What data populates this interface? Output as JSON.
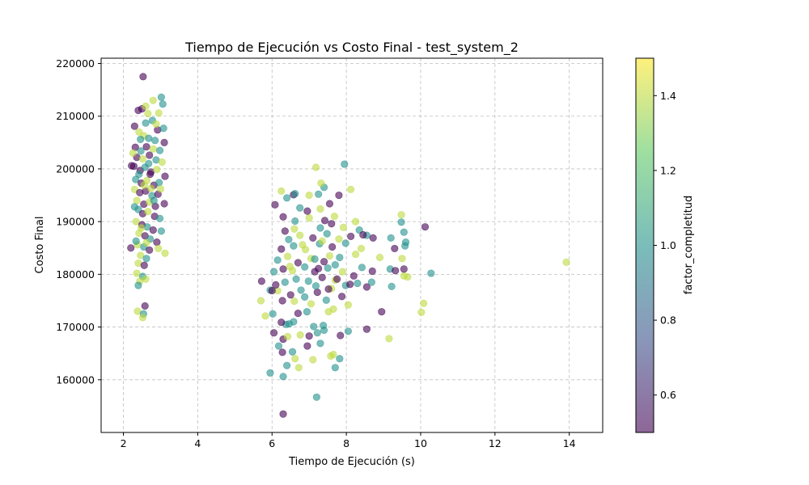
{
  "chart_data": {
    "type": "scatter",
    "title": "Tiempo de Ejecución vs Costo Final - test_system_2",
    "xlabel": "Tiempo de Ejecución (s)",
    "ylabel": "Costo Final",
    "xlim": [
      1.4,
      14.9
    ],
    "ylim": [
      150000,
      221000
    ],
    "xticks": [
      2,
      4,
      6,
      8,
      10,
      12,
      14
    ],
    "yticks": [
      160000,
      170000,
      180000,
      190000,
      200000,
      210000,
      220000
    ],
    "grid": true,
    "grid_style": "dashed",
    "alpha": 0.6,
    "colormap": "viridis",
    "colorbar": {
      "label": "factor_completitud",
      "range": [
        0.5,
        1.5
      ],
      "ticks": [
        0.6,
        0.8,
        1.0,
        1.2,
        1.4
      ]
    },
    "tick_labels": {
      "x": [
        "2",
        "4",
        "6",
        "8",
        "10",
        "12",
        "14"
      ],
      "y": [
        "160000",
        "170000",
        "180000",
        "190000",
        "200000",
        "210000",
        "220000"
      ],
      "colorbar": [
        "0.6",
        "0.8",
        "1.0",
        "1.2",
        "1.4"
      ]
    },
    "points": [
      [
        2.53,
        217500,
        0.5
      ],
      [
        2.8,
        213000,
        1.4
      ],
      [
        3.02,
        213600,
        1.0
      ],
      [
        3.06,
        212300,
        1.0
      ],
      [
        2.4,
        211100,
        0.5
      ],
      [
        2.5,
        211400,
        0.5
      ],
      [
        2.95,
        210600,
        1.4
      ],
      [
        2.3,
        208100,
        0.5
      ],
      [
        2.6,
        208700,
        1.0
      ],
      [
        2.78,
        209200,
        1.0
      ],
      [
        2.92,
        207400,
        0.5
      ],
      [
        3.08,
        207700,
        1.0
      ],
      [
        2.42,
        207000,
        1.4
      ],
      [
        2.55,
        206300,
        1.4
      ],
      [
        2.68,
        205800,
        1.0
      ],
      [
        2.85,
        205400,
        1.0
      ],
      [
        3.1,
        205000,
        0.5
      ],
      [
        2.32,
        204100,
        0.5
      ],
      [
        2.47,
        203400,
        1.0
      ],
      [
        2.62,
        204200,
        0.5
      ],
      [
        2.8,
        203800,
        1.4
      ],
      [
        2.98,
        203500,
        1.0
      ],
      [
        2.36,
        202200,
        0.5
      ],
      [
        2.52,
        201900,
        1.4
      ],
      [
        2.7,
        202600,
        0.5
      ],
      [
        2.88,
        201700,
        1.0
      ],
      [
        3.04,
        201300,
        1.4
      ],
      [
        2.28,
        200500,
        0.5
      ],
      [
        2.45,
        199700,
        0.5
      ],
      [
        2.58,
        200300,
        1.0
      ],
      [
        2.74,
        199400,
        0.5
      ],
      [
        2.9,
        199900,
        1.4
      ],
      [
        3.12,
        198600,
        0.5
      ],
      [
        2.33,
        198000,
        1.0
      ],
      [
        2.48,
        197300,
        0.5
      ],
      [
        2.63,
        197800,
        1.4
      ],
      [
        2.82,
        196900,
        0.5
      ],
      [
        2.96,
        197400,
        1.0
      ],
      [
        2.3,
        196100,
        1.4
      ],
      [
        2.44,
        195500,
        0.5
      ],
      [
        2.6,
        195800,
        0.5
      ],
      [
        2.77,
        194900,
        1.0
      ],
      [
        2.93,
        195200,
        0.5
      ],
      [
        2.36,
        194000,
        1.4
      ],
      [
        2.55,
        193300,
        0.5
      ],
      [
        2.7,
        193700,
        1.4
      ],
      [
        2.86,
        192900,
        0.5
      ],
      [
        3.1,
        193400,
        0.5
      ],
      [
        2.4,
        192300,
        1.0
      ],
      [
        2.52,
        191500,
        0.5
      ],
      [
        2.66,
        191900,
        1.4
      ],
      [
        2.84,
        191000,
        0.5
      ],
      [
        2.98,
        190600,
        1.0
      ],
      [
        2.34,
        190000,
        1.4
      ],
      [
        2.5,
        189400,
        0.5
      ],
      [
        2.64,
        189000,
        1.0
      ],
      [
        2.8,
        188400,
        0.5
      ],
      [
        3.02,
        188200,
        1.0
      ],
      [
        2.42,
        187800,
        1.4
      ],
      [
        2.58,
        187300,
        0.5
      ],
      [
        2.72,
        186700,
        1.0
      ],
      [
        2.9,
        186100,
        0.5
      ],
      [
        2.38,
        185600,
        1.4
      ],
      [
        2.55,
        185200,
        1.0
      ],
      [
        2.7,
        184600,
        0.5
      ],
      [
        2.94,
        184900,
        1.4
      ],
      [
        3.12,
        184000,
        1.4
      ],
      [
        2.2,
        185000,
        0.5
      ],
      [
        2.46,
        183600,
        1.4
      ],
      [
        2.62,
        183000,
        1.0
      ],
      [
        2.4,
        182100,
        1.4
      ],
      [
        2.56,
        181700,
        0.5
      ],
      [
        2.36,
        180200,
        1.4
      ],
      [
        2.52,
        179600,
        1.0
      ],
      [
        2.44,
        178700,
        1.4
      ],
      [
        2.4,
        177900,
        1.0
      ],
      [
        2.6,
        179100,
        1.4
      ],
      [
        2.58,
        174000,
        0.5
      ],
      [
        2.38,
        173000,
        1.4
      ],
      [
        2.54,
        172500,
        1.0
      ],
      [
        2.52,
        171800,
        1.4
      ],
      [
        2.22,
        200600,
        0.5
      ],
      [
        2.26,
        203000,
        1.4
      ],
      [
        2.66,
        210500,
        1.4
      ],
      [
        2.88,
        208500,
        1.4
      ],
      [
        2.74,
        196300,
        1.4
      ],
      [
        2.48,
        188800,
        1.4
      ],
      [
        2.3,
        192800,
        1.0
      ],
      [
        2.34,
        186300,
        1.0
      ],
      [
        2.62,
        186000,
        1.4
      ],
      [
        2.42,
        199000,
        1.0
      ],
      [
        2.68,
        201000,
        1.0
      ],
      [
        2.82,
        194000,
        1.0
      ],
      [
        3.0,
        196200,
        1.4
      ],
      [
        2.56,
        196900,
        1.4
      ],
      [
        2.72,
        199000,
        0.5
      ],
      [
        2.46,
        205600,
        1.0
      ],
      [
        2.6,
        211900,
        1.4
      ],
      [
        6.3,
        153500,
        0.5
      ],
      [
        7.2,
        156700,
        1.0
      ],
      [
        5.95,
        161300,
        1.0
      ],
      [
        6.3,
        160600,
        1.0
      ],
      [
        6.72,
        162300,
        1.4
      ],
      [
        7.7,
        162300,
        1.0
      ],
      [
        6.4,
        162700,
        1.0
      ],
      [
        7.1,
        163800,
        1.4
      ],
      [
        6.62,
        164000,
        1.4
      ],
      [
        7.58,
        164500,
        1.4
      ],
      [
        7.82,
        164000,
        1.0
      ],
      [
        7.65,
        164800,
        1.4
      ],
      [
        6.28,
        165200,
        0.5
      ],
      [
        6.55,
        165300,
        1.0
      ],
      [
        6.95,
        166400,
        0.5
      ],
      [
        7.3,
        166900,
        1.0
      ],
      [
        6.18,
        166400,
        1.0
      ],
      [
        6.3,
        167700,
        0.5
      ],
      [
        6.42,
        168200,
        1.4
      ],
      [
        6.76,
        168500,
        1.4
      ],
      [
        7.0,
        168300,
        0.5
      ],
      [
        7.22,
        168900,
        1.0
      ],
      [
        7.4,
        169400,
        1.0
      ],
      [
        7.84,
        168400,
        0.5
      ],
      [
        8.05,
        169200,
        1.0
      ],
      [
        8.55,
        169600,
        0.5
      ],
      [
        9.15,
        167800,
        1.4
      ],
      [
        6.05,
        168900,
        0.5
      ],
      [
        6.38,
        170500,
        1.0
      ],
      [
        6.46,
        170600,
        1.0
      ],
      [
        6.58,
        171000,
        1.0
      ],
      [
        6.25,
        170900,
        0.5
      ],
      [
        7.12,
        170100,
        1.0
      ],
      [
        7.38,
        170300,
        1.0
      ],
      [
        5.82,
        172100,
        1.4
      ],
      [
        6.02,
        172500,
        1.0
      ],
      [
        6.7,
        172600,
        0.5
      ],
      [
        6.94,
        172900,
        1.0
      ],
      [
        7.52,
        172900,
        1.4
      ],
      [
        7.65,
        173400,
        1.4
      ],
      [
        8.95,
        172900,
        0.5
      ],
      [
        10.02,
        172800,
        1.4
      ],
      [
        10.08,
        174500,
        1.4
      ],
      [
        5.7,
        175000,
        1.4
      ],
      [
        6.28,
        175000,
        0.5
      ],
      [
        6.6,
        174900,
        1.4
      ],
      [
        7.05,
        174400,
        1.4
      ],
      [
        7.46,
        175100,
        1.0
      ],
      [
        7.88,
        175800,
        0.5
      ],
      [
        8.05,
        174200,
        1.4
      ],
      [
        5.95,
        177000,
        1.0
      ],
      [
        6.15,
        176900,
        1.4
      ],
      [
        6.5,
        176100,
        0.5
      ],
      [
        6.78,
        177000,
        1.0
      ],
      [
        7.22,
        176600,
        0.5
      ],
      [
        7.6,
        177300,
        1.4
      ],
      [
        7.98,
        177900,
        1.0
      ],
      [
        8.3,
        178300,
        1.0
      ],
      [
        8.55,
        177600,
        0.5
      ],
      [
        9.22,
        177700,
        1.0
      ],
      [
        5.72,
        178700,
        0.5
      ],
      [
        6.1,
        178000,
        0.5
      ],
      [
        6.35,
        178500,
        1.0
      ],
      [
        6.65,
        179100,
        1.0
      ],
      [
        6.98,
        178700,
        1.0
      ],
      [
        7.35,
        179400,
        0.5
      ],
      [
        7.7,
        178900,
        1.4
      ],
      [
        8.1,
        178100,
        0.5
      ],
      [
        8.68,
        178500,
        1.0
      ],
      [
        9.55,
        179700,
        1.4
      ],
      [
        9.65,
        179500,
        1.4
      ],
      [
        6.05,
        180500,
        1.0
      ],
      [
        6.3,
        181000,
        0.5
      ],
      [
        6.55,
        180700,
        1.4
      ],
      [
        6.88,
        181400,
        1.0
      ],
      [
        7.15,
        180500,
        0.5
      ],
      [
        7.5,
        181200,
        1.0
      ],
      [
        7.9,
        180500,
        1.4
      ],
      [
        8.2,
        179700,
        0.5
      ],
      [
        8.7,
        180600,
        0.5
      ],
      [
        9.18,
        181000,
        1.0
      ],
      [
        9.32,
        180700,
        0.5
      ],
      [
        9.55,
        181000,
        0.5
      ],
      [
        10.28,
        180200,
        1.0
      ],
      [
        6.15,
        182700,
        1.0
      ],
      [
        6.42,
        183400,
        1.4
      ],
      [
        6.7,
        182200,
        0.5
      ],
      [
        7.05,
        183000,
        1.4
      ],
      [
        7.4,
        182400,
        0.5
      ],
      [
        7.82,
        183200,
        1.0
      ],
      [
        8.25,
        183800,
        1.4
      ],
      [
        8.9,
        183200,
        1.4
      ],
      [
        9.5,
        183000,
        1.4
      ],
      [
        6.25,
        184800,
        0.5
      ],
      [
        6.58,
        185400,
        1.0
      ],
      [
        6.9,
        184700,
        1.4
      ],
      [
        7.28,
        185800,
        1.0
      ],
      [
        7.62,
        185200,
        0.5
      ],
      [
        7.98,
        185900,
        1.0
      ],
      [
        8.4,
        184900,
        1.4
      ],
      [
        9.3,
        184900,
        0.5
      ],
      [
        9.58,
        185400,
        1.0
      ],
      [
        6.45,
        186600,
        1.0
      ],
      [
        6.75,
        187400,
        1.4
      ],
      [
        7.1,
        186900,
        0.5
      ],
      [
        7.48,
        187700,
        1.0
      ],
      [
        7.8,
        186700,
        1.4
      ],
      [
        8.12,
        187200,
        0.5
      ],
      [
        8.55,
        187400,
        1.0
      ],
      [
        8.72,
        186900,
        0.5
      ],
      [
        9.2,
        186900,
        1.0
      ],
      [
        9.6,
        186100,
        1.0
      ],
      [
        6.35,
        188200,
        0.5
      ],
      [
        6.6,
        188600,
        1.4
      ],
      [
        7.3,
        188800,
        1.0
      ],
      [
        7.6,
        189600,
        0.5
      ],
      [
        7.92,
        188900,
        1.4
      ],
      [
        8.35,
        188400,
        1.0
      ],
      [
        8.45,
        187500,
        0.5
      ],
      [
        9.55,
        188000,
        1.0
      ],
      [
        6.3,
        190900,
        0.5
      ],
      [
        6.62,
        190100,
        1.0
      ],
      [
        7.0,
        190700,
        1.4
      ],
      [
        7.42,
        190200,
        0.5
      ],
      [
        7.68,
        191000,
        1.4
      ],
      [
        8.25,
        190000,
        1.4
      ],
      [
        9.48,
        189900,
        1.0
      ],
      [
        10.12,
        189000,
        0.5
      ],
      [
        6.08,
        193200,
        0.5
      ],
      [
        6.75,
        192600,
        1.0
      ],
      [
        6.95,
        192000,
        0.5
      ],
      [
        7.3,
        192400,
        1.4
      ],
      [
        7.55,
        193400,
        0.5
      ],
      [
        9.48,
        191300,
        1.4
      ],
      [
        6.4,
        194500,
        1.0
      ],
      [
        6.58,
        195100,
        0.5
      ],
      [
        7.25,
        195200,
        1.0
      ],
      [
        7.8,
        195000,
        0.5
      ],
      [
        8.12,
        196100,
        1.4
      ],
      [
        6.25,
        195800,
        1.4
      ],
      [
        7.0,
        195000,
        1.4
      ],
      [
        7.4,
        196500,
        1.0
      ],
      [
        6.62,
        195300,
        1.0
      ],
      [
        7.32,
        197300,
        1.4
      ],
      [
        7.18,
        200300,
        1.4
      ],
      [
        7.95,
        200900,
        1.0
      ],
      [
        13.92,
        182300,
        1.4
      ],
      [
        6.0,
        176900,
        0.5
      ],
      [
        6.88,
        175700,
        1.0
      ],
      [
        7.18,
        177800,
        1.0
      ],
      [
        7.52,
        177200,
        0.5
      ],
      [
        7.75,
        179100,
        0.5
      ],
      [
        6.82,
        185600,
        1.4
      ],
      [
        7.35,
        186300,
        1.4
      ],
      [
        7.15,
        182900,
        1.0
      ],
      [
        7.55,
        183500,
        1.4
      ],
      [
        6.48,
        181500,
        1.4
      ],
      [
        7.25,
        181100,
        0.5
      ],
      [
        7.7,
        181800,
        1.0
      ],
      [
        8.42,
        181300,
        1.0
      ]
    ]
  }
}
